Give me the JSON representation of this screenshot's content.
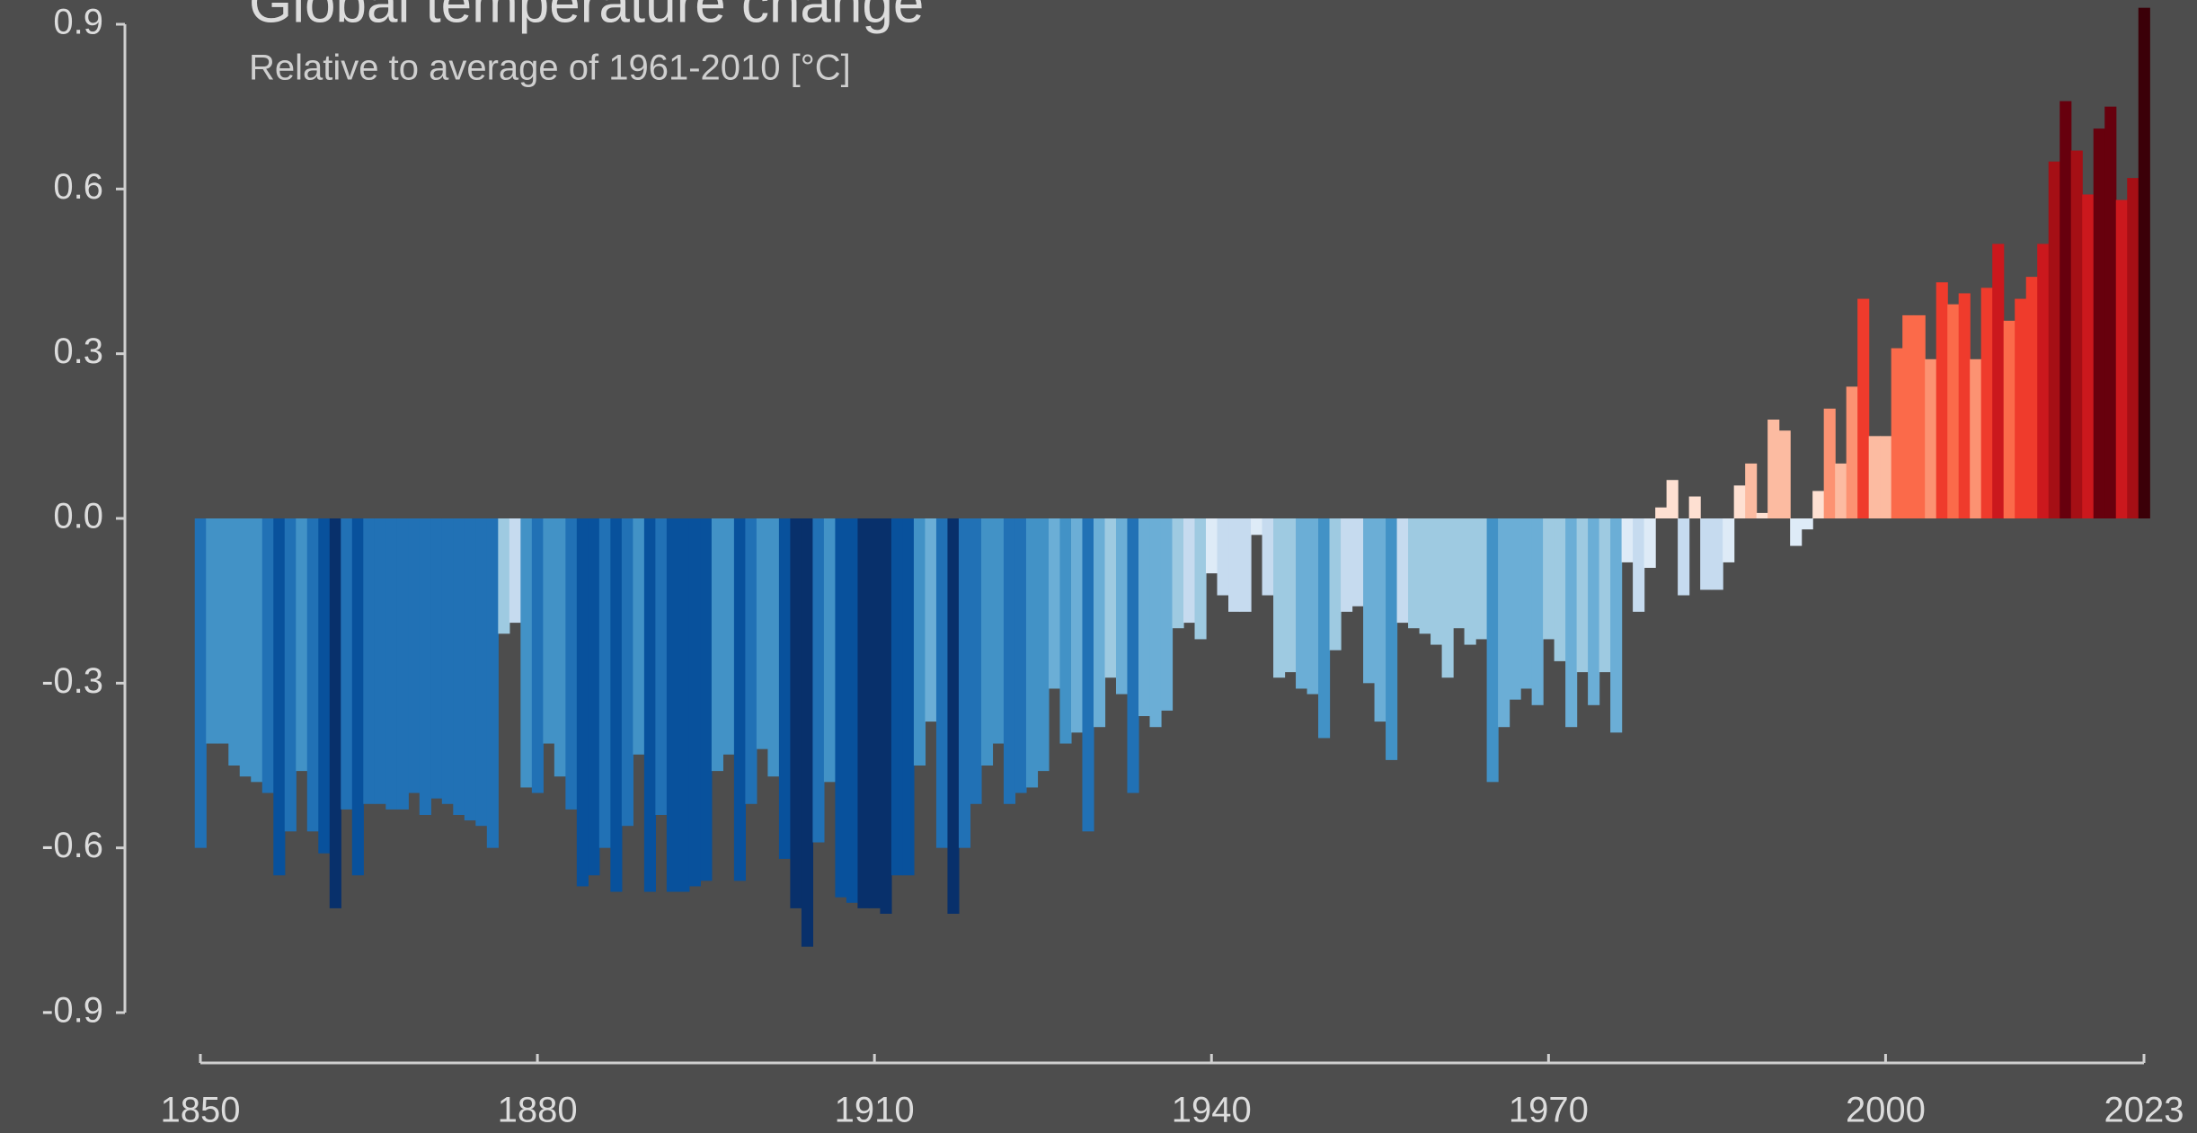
{
  "chart_data": {
    "type": "bar",
    "title": "Global temperature change",
    "subtitle": "Relative to average of 1961-2010  [°C]",
    "x": [
      1850,
      1851,
      1852,
      1853,
      1854,
      1855,
      1856,
      1857,
      1858,
      1859,
      1860,
      1861,
      1862,
      1863,
      1864,
      1865,
      1866,
      1867,
      1868,
      1869,
      1870,
      1871,
      1872,
      1873,
      1874,
      1875,
      1876,
      1877,
      1878,
      1879,
      1880,
      1881,
      1882,
      1883,
      1884,
      1885,
      1886,
      1887,
      1888,
      1889,
      1890,
      1891,
      1892,
      1893,
      1894,
      1895,
      1896,
      1897,
      1898,
      1899,
      1900,
      1901,
      1902,
      1903,
      1904,
      1905,
      1906,
      1907,
      1908,
      1909,
      1910,
      1911,
      1912,
      1913,
      1914,
      1915,
      1916,
      1917,
      1918,
      1919,
      1920,
      1921,
      1922,
      1923,
      1924,
      1925,
      1926,
      1927,
      1928,
      1929,
      1930,
      1931,
      1932,
      1933,
      1934,
      1935,
      1936,
      1937,
      1938,
      1939,
      1940,
      1941,
      1942,
      1943,
      1944,
      1945,
      1946,
      1947,
      1948,
      1949,
      1950,
      1951,
      1952,
      1953,
      1954,
      1955,
      1956,
      1957,
      1958,
      1959,
      1960,
      1961,
      1962,
      1963,
      1964,
      1965,
      1966,
      1967,
      1968,
      1969,
      1970,
      1971,
      1972,
      1973,
      1974,
      1975,
      1976,
      1977,
      1978,
      1979,
      1980,
      1981,
      1982,
      1983,
      1984,
      1985,
      1986,
      1987,
      1988,
      1989,
      1990,
      1991,
      1992,
      1993,
      1994,
      1995,
      1996,
      1997,
      1998,
      1999,
      2000,
      2001,
      2002,
      2003,
      2004,
      2005,
      2006,
      2007,
      2008,
      2009,
      2010,
      2011,
      2012,
      2013,
      2014,
      2015,
      2016,
      2017,
      2018,
      2019,
      2020,
      2021,
      2022,
      2023
    ],
    "values": [
      -0.6,
      -0.41,
      -0.41,
      -0.45,
      -0.47,
      -0.48,
      -0.5,
      -0.65,
      -0.57,
      -0.46,
      -0.57,
      -0.61,
      -0.71,
      -0.53,
      -0.65,
      -0.52,
      -0.52,
      -0.53,
      -0.53,
      -0.5,
      -0.54,
      -0.51,
      -0.52,
      -0.54,
      -0.55,
      -0.56,
      -0.6,
      -0.21,
      -0.19,
      -0.49,
      -0.5,
      -0.41,
      -0.47,
      -0.53,
      -0.67,
      -0.65,
      -0.6,
      -0.68,
      -0.56,
      -0.43,
      -0.68,
      -0.54,
      -0.68,
      -0.68,
      -0.67,
      -0.66,
      -0.46,
      -0.43,
      -0.66,
      -0.52,
      -0.42,
      -0.47,
      -0.62,
      -0.71,
      -0.78,
      -0.59,
      -0.48,
      -0.69,
      -0.7,
      -0.71,
      -0.71,
      -0.72,
      -0.65,
      -0.65,
      -0.45,
      -0.37,
      -0.6,
      -0.72,
      -0.6,
      -0.52,
      -0.45,
      -0.41,
      -0.52,
      -0.5,
      -0.49,
      -0.46,
      -0.31,
      -0.41,
      -0.39,
      -0.57,
      -0.38,
      -0.29,
      -0.32,
      -0.5,
      -0.36,
      -0.38,
      -0.35,
      -0.2,
      -0.19,
      -0.22,
      -0.1,
      -0.14,
      -0.17,
      -0.17,
      -0.03,
      -0.14,
      -0.29,
      -0.28,
      -0.31,
      -0.32,
      -0.4,
      -0.24,
      -0.17,
      -0.16,
      -0.3,
      -0.37,
      -0.44,
      -0.19,
      -0.2,
      -0.21,
      -0.23,
      -0.29,
      -0.2,
      -0.23,
      -0.22,
      -0.48,
      -0.38,
      -0.33,
      -0.31,
      -0.34,
      -0.22,
      -0.26,
      -0.38,
      -0.28,
      -0.34,
      -0.28,
      -0.39,
      -0.08,
      -0.17,
      -0.09,
      0.02,
      0.07,
      -0.14,
      0.04,
      -0.13,
      -0.13,
      -0.08,
      0.06,
      0.1,
      0.01,
      0.18,
      0.16,
      -0.05,
      -0.02,
      0.05,
      0.2,
      0.1,
      0.24,
      0.4,
      0.15,
      0.15,
      0.31,
      0.37,
      0.37,
      0.29,
      0.43,
      0.39,
      0.41,
      0.29,
      0.42,
      0.5,
      0.36,
      0.4,
      0.44,
      0.5,
      0.65,
      0.76,
      0.67,
      0.59,
      0.71,
      0.75,
      0.58,
      0.62,
      0.93
    ],
    "colors": [
      "#2171b5",
      "#4292c6",
      "#4292c6",
      "#4292c6",
      "#4292c6",
      "#4292c6",
      "#2171b5",
      "#08519c",
      "#2171b5",
      "#4292c6",
      "#2171b5",
      "#08519c",
      "#08306b",
      "#2171b5",
      "#08519c",
      "#2171b5",
      "#2171b5",
      "#2171b5",
      "#2171b5",
      "#2171b5",
      "#2171b5",
      "#2171b5",
      "#2171b5",
      "#2171b5",
      "#2171b5",
      "#2171b5",
      "#2171b5",
      "#9ecae1",
      "#c6dbef",
      "#4292c6",
      "#2171b5",
      "#4292c6",
      "#4292c6",
      "#2171b5",
      "#08519c",
      "#08519c",
      "#2171b5",
      "#08519c",
      "#2171b5",
      "#4292c6",
      "#08519c",
      "#2171b5",
      "#08519c",
      "#08519c",
      "#08519c",
      "#08519c",
      "#4292c6",
      "#4292c6",
      "#08519c",
      "#2171b5",
      "#4292c6",
      "#4292c6",
      "#08519c",
      "#08306b",
      "#08306b",
      "#2171b5",
      "#4292c6",
      "#08519c",
      "#08519c",
      "#08306b",
      "#08306b",
      "#08306b",
      "#08519c",
      "#08519c",
      "#4292c6",
      "#6baed6",
      "#2171b5",
      "#08306b",
      "#2171b5",
      "#2171b5",
      "#4292c6",
      "#4292c6",
      "#2171b5",
      "#2171b5",
      "#4292c6",
      "#4292c6",
      "#6baed6",
      "#4292c6",
      "#6baed6",
      "#2171b5",
      "#6baed6",
      "#9ecae1",
      "#6baed6",
      "#2171b5",
      "#6baed6",
      "#6baed6",
      "#6baed6",
      "#9ecae1",
      "#c6dbef",
      "#9ecae1",
      "#deebf7",
      "#c6dbef",
      "#c6dbef",
      "#c6dbef",
      "#deebf7",
      "#c6dbef",
      "#9ecae1",
      "#9ecae1",
      "#6baed6",
      "#6baed6",
      "#4292c6",
      "#9ecae1",
      "#c6dbef",
      "#c6dbef",
      "#6baed6",
      "#6baed6",
      "#4292c6",
      "#c6dbef",
      "#9ecae1",
      "#9ecae1",
      "#9ecae1",
      "#9ecae1",
      "#9ecae1",
      "#9ecae1",
      "#9ecae1",
      "#4292c6",
      "#6baed6",
      "#6baed6",
      "#6baed6",
      "#6baed6",
      "#9ecae1",
      "#9ecae1",
      "#6baed6",
      "#9ecae1",
      "#6baed6",
      "#9ecae1",
      "#6baed6",
      "#deebf7",
      "#c6dbef",
      "#deebf7",
      "#fee0d2",
      "#fee0d2",
      "#c6dbef",
      "#fee0d2",
      "#c6dbef",
      "#c6dbef",
      "#deebf7",
      "#fee0d2",
      "#fcbba1",
      "#fee0d2",
      "#fcbba1",
      "#fcbba1",
      "#deebf7",
      "#deebf7",
      "#fee0d2",
      "#fc9272",
      "#fcbba1",
      "#fc9272",
      "#ef3b2c",
      "#fcbba1",
      "#fcbba1",
      "#fb6a4a",
      "#fb6a4a",
      "#fb6a4a",
      "#fc9272",
      "#ef3b2c",
      "#fb6a4a",
      "#ef3b2c",
      "#fc9272",
      "#ef3b2c",
      "#cb181d",
      "#fb6a4a",
      "#ef3b2c",
      "#ef3b2c",
      "#cb181d",
      "#a50f15",
      "#67000d",
      "#a50f15",
      "#cb181d",
      "#67000d",
      "#67000d",
      "#cb181d",
      "#a50f15",
      "#3b0008"
    ],
    "xlim": [
      1850,
      2023
    ],
    "xticks": [
      1850,
      1880,
      1910,
      1940,
      1970,
      2000,
      2023
    ],
    "ylim": [
      -0.9,
      0.9
    ],
    "yticks": [
      -0.9,
      -0.6,
      -0.3,
      {
        "value": 0,
        "label": "0.0"
      },
      0.3,
      0.6,
      0.9
    ]
  }
}
